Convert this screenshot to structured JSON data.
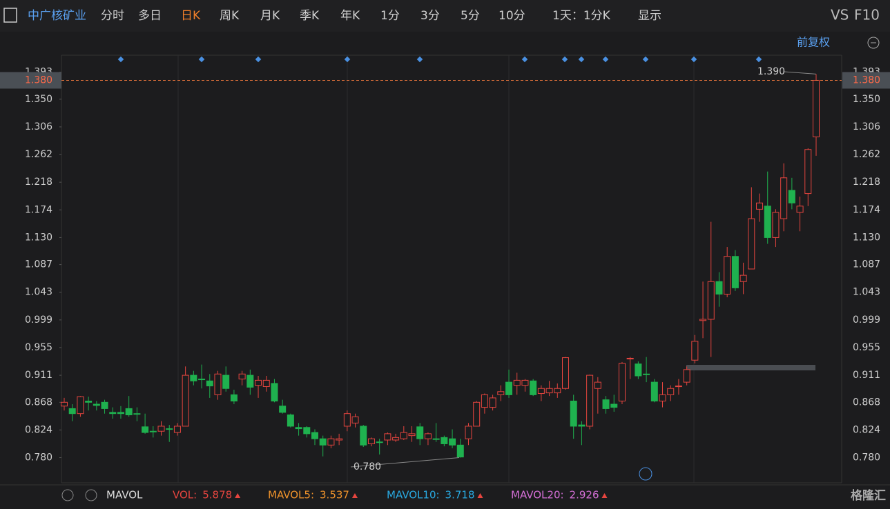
{
  "toolbar": {
    "symbol": "中广核矿业",
    "tabs": [
      "分时",
      "多日",
      "日K",
      "周K",
      "月K",
      "季K",
      "年K",
      "1分",
      "3分",
      "5分",
      "10分"
    ],
    "active_tab": 2,
    "period": "1天：1分K",
    "display": "显示",
    "vs": "VS",
    "f10": "F10"
  },
  "adjust": "前复权",
  "chart_data": {
    "type": "candlestick",
    "up_color": "#e6453f",
    "down_color": "#1fb14f",
    "ylim": [
      0.74,
      1.42
    ],
    "yticks": [
      {
        "value": 0.78,
        "label": "0.780"
      },
      {
        "value": 0.824,
        "label": "0.824"
      },
      {
        "value": 0.868,
        "label": "0.868"
      },
      {
        "value": 0.911,
        "label": "0.911"
      },
      {
        "value": 0.955,
        "label": "0.955"
      },
      {
        "value": 0.999,
        "label": "0.999"
      },
      {
        "value": 1.043,
        "label": "1.043"
      },
      {
        "value": 1.087,
        "label": "1.087"
      },
      {
        "value": 1.13,
        "label": "1.130"
      },
      {
        "value": 1.174,
        "label": "1.174"
      },
      {
        "value": 1.218,
        "label": "1.218"
      },
      {
        "value": 1.262,
        "label": "1.262"
      },
      {
        "value": 1.306,
        "label": "1.306"
      },
      {
        "value": 1.35,
        "label": "1.350"
      },
      {
        "value": 1.393,
        "label": "1.393"
      }
    ],
    "current_price": {
      "value": 1.38,
      "label": "1.380"
    },
    "high_label": {
      "value": 1.39,
      "label": "1.390"
    },
    "low_label": {
      "value": 0.78,
      "label": "0.780"
    },
    "open": [
      0.862,
      0.858,
      0.85,
      0.87,
      0.865,
      0.868,
      0.852,
      0.852,
      0.858,
      0.85,
      0.829,
      0.822,
      0.822,
      0.826,
      0.82,
      0.83,
      0.911,
      0.905,
      0.902,
      0.88,
      0.911,
      0.88,
      0.905,
      0.911,
      0.895,
      0.893,
      0.898,
      0.862,
      0.848,
      0.828,
      0.828,
      0.82,
      0.81,
      0.8,
      0.808,
      0.83,
      0.835,
      0.83,
      0.802,
      0.805,
      0.808,
      0.808,
      0.81,
      0.815,
      0.829,
      0.81,
      0.81,
      0.812,
      0.81,
      0.8,
      0.81,
      0.83,
      0.86,
      0.86,
      0.88,
      0.9,
      0.895,
      0.895,
      0.902,
      0.882,
      0.883,
      0.883,
      0.89,
      0.87,
      0.832,
      0.83,
      0.89,
      0.872,
      0.865,
      0.87,
      0.937,
      0.929,
      0.913,
      0.9,
      0.87,
      0.88,
      0.893,
      0.9,
      0.935,
      0.998,
      1.0,
      1.06,
      1.04,
      1.1,
      1.06,
      1.08,
      1.175,
      1.18,
      1.13,
      1.16,
      1.205,
      1.17,
      1.2,
      1.29
    ],
    "high": [
      0.875,
      0.865,
      0.878,
      0.877,
      0.87,
      0.872,
      0.86,
      0.862,
      0.878,
      0.86,
      0.85,
      0.83,
      0.838,
      0.832,
      0.835,
      0.925,
      0.918,
      0.928,
      0.913,
      0.918,
      0.925,
      0.888,
      0.918,
      0.92,
      0.91,
      0.91,
      0.905,
      0.872,
      0.85,
      0.835,
      0.83,
      0.825,
      0.815,
      0.815,
      0.818,
      0.855,
      0.85,
      0.832,
      0.812,
      0.81,
      0.82,
      0.818,
      0.83,
      0.83,
      0.835,
      0.82,
      0.835,
      0.815,
      0.825,
      0.81,
      0.835,
      0.87,
      0.882,
      0.88,
      0.895,
      0.92,
      0.915,
      0.905,
      0.905,
      0.895,
      0.902,
      0.898,
      0.94,
      0.88,
      0.838,
      0.912,
      0.908,
      0.878,
      0.88,
      0.932,
      0.94,
      0.933,
      0.94,
      0.905,
      0.9,
      0.895,
      0.905,
      0.925,
      0.975,
      1.06,
      1.155,
      1.075,
      1.115,
      1.11,
      1.09,
      1.21,
      1.2,
      1.235,
      1.175,
      1.248,
      1.225,
      1.195,
      1.272,
      1.39
    ],
    "low": [
      0.855,
      0.838,
      0.845,
      0.855,
      0.855,
      0.85,
      0.842,
      0.842,
      0.845,
      0.838,
      0.818,
      0.812,
      0.815,
      0.805,
      0.815,
      0.83,
      0.895,
      0.89,
      0.875,
      0.872,
      0.885,
      0.865,
      0.895,
      0.88,
      0.875,
      0.885,
      0.868,
      0.85,
      0.828,
      0.815,
      0.812,
      0.8,
      0.782,
      0.795,
      0.8,
      0.822,
      0.828,
      0.797,
      0.798,
      0.785,
      0.8,
      0.805,
      0.808,
      0.805,
      0.8,
      0.8,
      0.805,
      0.798,
      0.795,
      0.78,
      0.8,
      0.83,
      0.85,
      0.855,
      0.87,
      0.875,
      0.88,
      0.885,
      0.878,
      0.87,
      0.878,
      0.875,
      0.888,
      0.81,
      0.8,
      0.825,
      0.85,
      0.85,
      0.853,
      0.865,
      0.905,
      0.905,
      0.9,
      0.868,
      0.86,
      0.87,
      0.88,
      0.895,
      0.93,
      0.97,
      0.94,
      1.02,
      1.035,
      1.045,
      1.04,
      1.08,
      1.155,
      1.12,
      1.115,
      1.14,
      1.175,
      1.14,
      1.18,
      1.26
    ],
    "close": [
      0.868,
      0.85,
      0.877,
      0.868,
      0.863,
      0.858,
      0.85,
      0.85,
      0.848,
      0.849,
      0.82,
      0.821,
      0.83,
      0.825,
      0.83,
      0.911,
      0.902,
      0.904,
      0.894,
      0.913,
      0.89,
      0.87,
      0.913,
      0.892,
      0.903,
      0.903,
      0.87,
      0.852,
      0.83,
      0.826,
      0.818,
      0.81,
      0.8,
      0.81,
      0.81,
      0.85,
      0.845,
      0.8,
      0.81,
      0.804,
      0.818,
      0.812,
      0.82,
      0.818,
      0.81,
      0.818,
      0.809,
      0.802,
      0.8,
      0.781,
      0.83,
      0.868,
      0.88,
      0.875,
      0.885,
      0.88,
      0.903,
      0.903,
      0.88,
      0.89,
      0.89,
      0.89,
      0.939,
      0.83,
      0.83,
      0.911,
      0.9,
      0.858,
      0.86,
      0.93,
      0.938,
      0.91,
      0.912,
      0.87,
      0.88,
      0.89,
      0.894,
      0.92,
      0.965,
      1.0,
      1.06,
      1.04,
      1.1,
      1.05,
      1.07,
      1.16,
      1.185,
      1.13,
      1.17,
      1.225,
      1.185,
      1.18,
      1.27,
      1.38
    ]
  },
  "indicator": {
    "name": "MAVOL",
    "items": [
      {
        "label": "VOL:",
        "value": 5.878,
        "color": "#e6453f"
      },
      {
        "label": "MAVOL5:",
        "value": 3.537,
        "color": "#f0932b"
      },
      {
        "label": "MAVOL10:",
        "value": 3.718,
        "color": "#29a8e0"
      },
      {
        "label": "MAVOL20:",
        "value": 2.926,
        "color": "#d46fd6"
      }
    ]
  },
  "watermark": "格隆汇"
}
